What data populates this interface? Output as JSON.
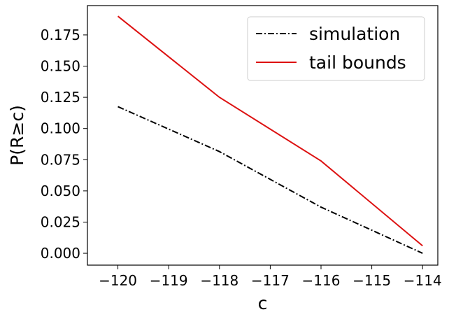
{
  "chart_data": {
    "type": "line",
    "title": "",
    "xlabel": "c",
    "ylabel": "P(R≥c)",
    "x": [
      -120,
      -118,
      -116,
      -114
    ],
    "xlim": [
      -120.6,
      -113.7
    ],
    "ylim": [
      -0.0095,
      0.1985
    ],
    "xticks": [
      -120,
      -119,
      -118,
      -117,
      -116,
      -115,
      -114
    ],
    "xtick_labels": [
      "−120",
      "−119",
      "−118",
      "−117",
      "−116",
      "−115",
      "−114"
    ],
    "yticks": [
      0.0,
      0.025,
      0.05,
      0.075,
      0.1,
      0.125,
      0.15,
      0.175
    ],
    "ytick_labels": [
      "0.000",
      "0.025",
      "0.050",
      "0.075",
      "0.100",
      "0.125",
      "0.150",
      "0.175"
    ],
    "grid": false,
    "legend_position": "top-right",
    "series": [
      {
        "name": "simulation",
        "values": [
          0.1175,
          0.0815,
          0.037,
          0.0
        ],
        "color": "#000000",
        "style": "dashdot"
      },
      {
        "name": "tail bounds",
        "values": [
          0.19,
          0.125,
          0.074,
          0.006
        ],
        "color": "#dd1111",
        "style": "solid"
      }
    ]
  }
}
